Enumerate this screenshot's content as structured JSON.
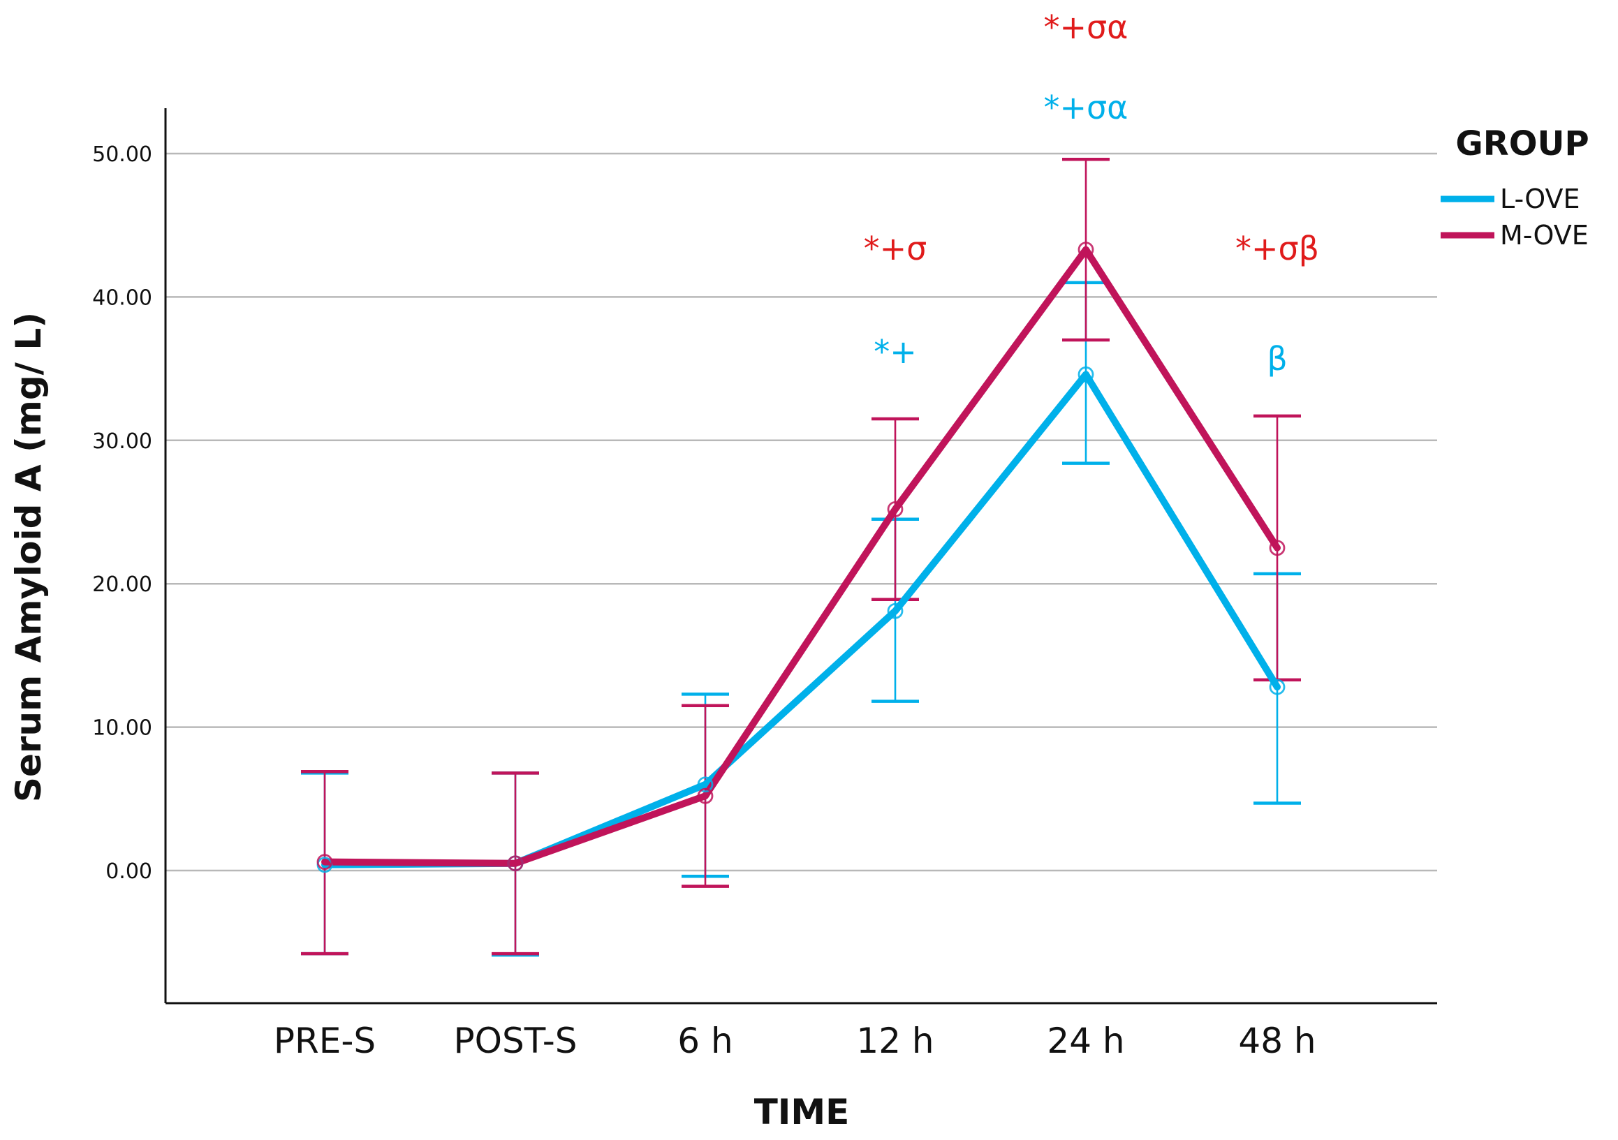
{
  "chart_data": {
    "type": "line",
    "title": "",
    "xlabel": "TIME",
    "ylabel": "Serum Amyloid A (mg/  L)",
    "categories": [
      "PRE-S",
      "POST-S",
      "6 h",
      "12 h",
      "24 h",
      "48 h"
    ],
    "ylim": [
      -9,
      53
    ],
    "yticks": [
      0,
      10,
      20,
      30,
      40,
      50
    ],
    "ytick_labels": [
      "0.00",
      "10.00",
      "20.00",
      "30.00",
      "40.00",
      "50.00"
    ],
    "grid": true,
    "legend": {
      "title": "GROUP",
      "position": "top-right",
      "entries": [
        "L-OVE",
        "M-OVE"
      ]
    },
    "series": [
      {
        "name": "L-OVE",
        "color": "#00b0ea",
        "values": [
          0.4,
          0.5,
          6.0,
          18.1,
          34.6,
          12.8
        ],
        "err_low": [
          -5.8,
          -5.9,
          -0.4,
          11.8,
          28.4,
          4.7
        ],
        "err_high": [
          6.8,
          6.8,
          12.3,
          24.5,
          41.0,
          20.7
        ]
      },
      {
        "name": "M-OVE",
        "color": "#c0145a",
        "values": [
          0.6,
          0.5,
          5.2,
          25.2,
          43.3,
          22.5
        ],
        "err_low": [
          -5.8,
          -5.8,
          -1.1,
          18.9,
          37.0,
          13.3
        ],
        "err_high": [
          6.9,
          6.8,
          11.5,
          31.5,
          49.6,
          31.7
        ]
      }
    ],
    "annotations": [
      {
        "category": "12 h",
        "series": "M-OVE",
        "text": "*+σ",
        "color": "#e01b1b"
      },
      {
        "category": "12 h",
        "series": "L-OVE",
        "text": "*+",
        "color": "#00b0ea"
      },
      {
        "category": "24 h",
        "series": "M-OVE",
        "text": "*+σα",
        "color": "#e01b1b"
      },
      {
        "category": "24 h",
        "series": "L-OVE",
        "text": "*+σα",
        "color": "#00b0ea"
      },
      {
        "category": "48 h",
        "series": "M-OVE",
        "text": "*+σβ",
        "color": "#e01b1b"
      },
      {
        "category": "48 h",
        "series": "L-OVE",
        "text": "β",
        "color": "#00b0ea"
      }
    ]
  }
}
